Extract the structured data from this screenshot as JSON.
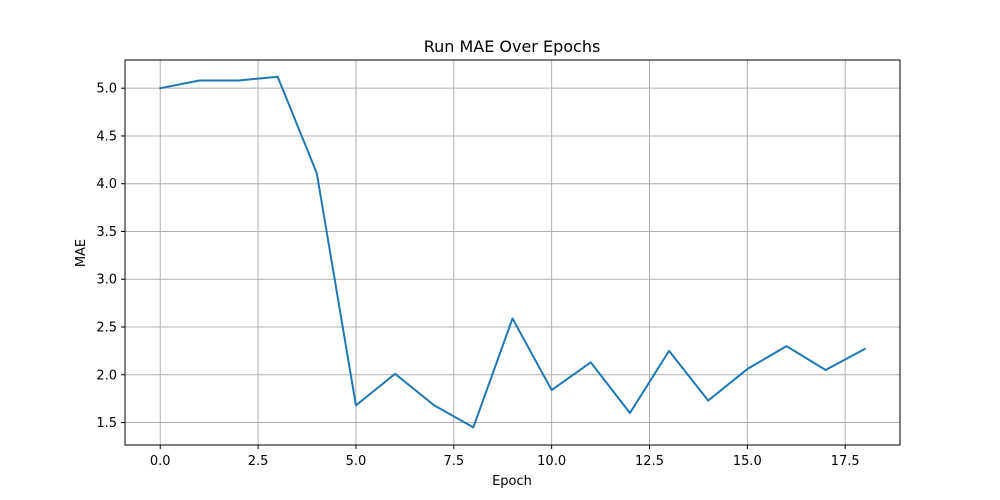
{
  "chart_data": {
    "type": "line",
    "title": "Run MAE Over Epochs",
    "xlabel": "Epoch",
    "ylabel": "MAE",
    "xlim": [
      -0.9,
      18.9
    ],
    "ylim": [
      1.265,
      5.295
    ],
    "x_ticks": [
      0.0,
      2.5,
      5.0,
      7.5,
      10.0,
      12.5,
      15.0,
      17.5
    ],
    "x_tick_labels": [
      "0.0",
      "2.5",
      "5.0",
      "7.5",
      "10.0",
      "12.5",
      "15.0",
      "17.5"
    ],
    "y_ticks": [
      1.5,
      2.0,
      2.5,
      3.0,
      3.5,
      4.0,
      4.5,
      5.0
    ],
    "y_tick_labels": [
      "1.5",
      "2.0",
      "2.5",
      "3.0",
      "3.5",
      "4.0",
      "4.5",
      "5.0"
    ],
    "grid": true,
    "series": [
      {
        "color": "#1f77b4",
        "x": [
          0,
          1,
          2,
          3,
          4,
          5,
          6,
          7,
          8,
          9,
          10,
          11,
          12,
          13,
          14,
          15,
          16,
          17,
          18
        ],
        "values": [
          5.0,
          5.08,
          5.08,
          5.12,
          4.11,
          1.68,
          2.01,
          1.68,
          1.45,
          2.59,
          1.84,
          2.13,
          1.6,
          2.25,
          1.73,
          2.06,
          2.3,
          2.05,
          2.27
        ]
      }
    ]
  }
}
